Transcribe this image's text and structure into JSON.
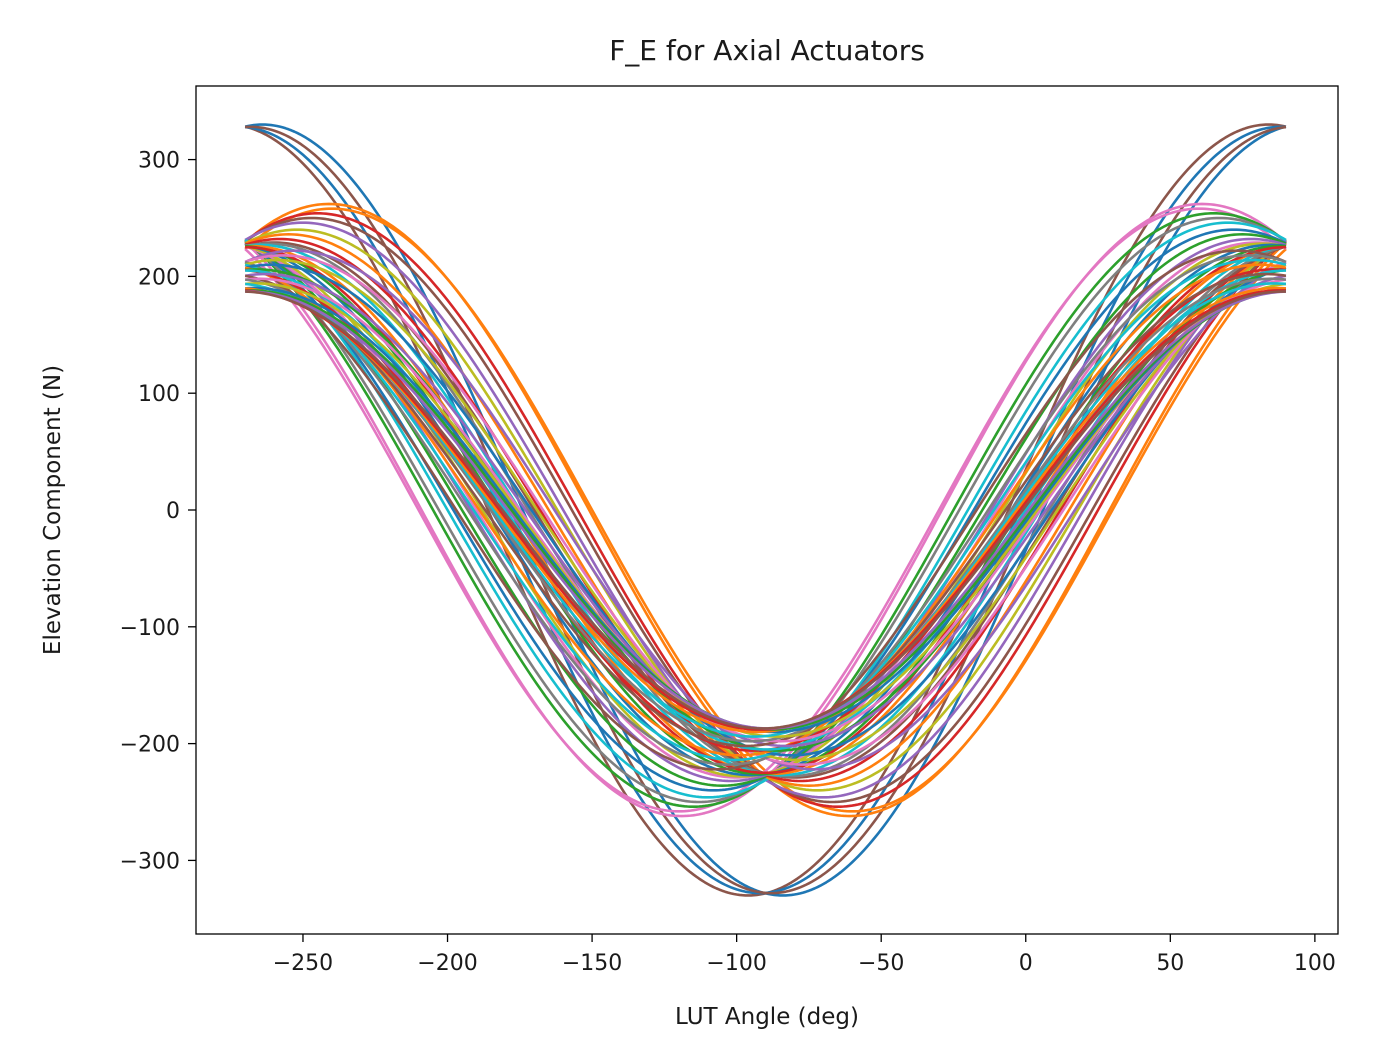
{
  "chart_data": {
    "type": "line",
    "title": "F_E for Axial Actuators",
    "xlabel": "LUT Angle (deg)",
    "ylabel": "Elevation Component (N)",
    "xlim": [
      -287,
      108
    ],
    "ylim": [
      -363,
      363
    ],
    "x_range": [
      -270,
      90
    ],
    "x_ticks": [
      -250,
      -200,
      -150,
      -100,
      -50,
      0,
      50,
      100
    ],
    "x_tick_labels": [
      "−250",
      "−200",
      "−150",
      "−100",
      "−50",
      "0",
      "50",
      "100"
    ],
    "y_ticks": [
      -300,
      -200,
      -100,
      0,
      100,
      200,
      300
    ],
    "y_tick_labels": [
      "−300",
      "−200",
      "−100",
      "0",
      "100",
      "200",
      "300"
    ],
    "grid": false,
    "legend": "none",
    "curve_model": "y = amplitude * cos(x - min_angle)",
    "series": [
      {
        "amplitude": 330,
        "min_angle": -84,
        "color": "#1f77b4"
      },
      {
        "amplitude": 330,
        "min_angle": -96,
        "color": "#8c564b"
      },
      {
        "amplitude": 328,
        "min_angle": -92,
        "color": "#1f77b4"
      },
      {
        "amplitude": 328,
        "min_angle": -88,
        "color": "#8c564b"
      },
      {
        "amplitude": 262,
        "min_angle": -61,
        "color": "#ff7f0e"
      },
      {
        "amplitude": 262,
        "min_angle": -119,
        "color": "#e377c2"
      },
      {
        "amplitude": 258,
        "min_angle": -60,
        "color": "#ff7f0e"
      },
      {
        "amplitude": 258,
        "min_angle": -120,
        "color": "#e377c2"
      },
      {
        "amplitude": 254,
        "min_angle": -65,
        "color": "#d62728"
      },
      {
        "amplitude": 254,
        "min_angle": -115,
        "color": "#2ca02c"
      },
      {
        "amplitude": 250,
        "min_angle": -67,
        "color": "#8c564b"
      },
      {
        "amplitude": 250,
        "min_angle": -113,
        "color": "#7f7f7f"
      },
      {
        "amplitude": 246,
        "min_angle": -70,
        "color": "#9467bd"
      },
      {
        "amplitude": 246,
        "min_angle": -110,
        "color": "#17becf"
      },
      {
        "amplitude": 240,
        "min_angle": -72,
        "color": "#bcbd22"
      },
      {
        "amplitude": 240,
        "min_angle": -108,
        "color": "#1f77b4"
      },
      {
        "amplitude": 236,
        "min_angle": -75,
        "color": "#ff7f0e"
      },
      {
        "amplitude": 236,
        "min_angle": -105,
        "color": "#2ca02c"
      },
      {
        "amplitude": 232,
        "min_angle": -78,
        "color": "#d62728"
      },
      {
        "amplitude": 232,
        "min_angle": -102,
        "color": "#9467bd"
      },
      {
        "amplitude": 229,
        "min_angle": -80,
        "color": "#8c564b"
      },
      {
        "amplitude": 229,
        "min_angle": -100,
        "color": "#e377c2"
      },
      {
        "amplitude": 228,
        "min_angle": -82,
        "color": "#7f7f7f"
      },
      {
        "amplitude": 228,
        "min_angle": -98,
        "color": "#bcbd22"
      },
      {
        "amplitude": 227,
        "min_angle": -85,
        "color": "#17becf"
      },
      {
        "amplitude": 227,
        "min_angle": -95,
        "color": "#1f77b4"
      },
      {
        "amplitude": 226,
        "min_angle": -88,
        "color": "#ff7f0e"
      },
      {
        "amplitude": 226,
        "min_angle": -92,
        "color": "#2ca02c"
      },
      {
        "amplitude": 225,
        "min_angle": -90,
        "color": "#d62728"
      },
      {
        "amplitude": 222,
        "min_angle": -73,
        "color": "#9467bd"
      },
      {
        "amplitude": 222,
        "min_angle": -107,
        "color": "#8c564b"
      },
      {
        "amplitude": 218,
        "min_angle": -77,
        "color": "#e377c2"
      },
      {
        "amplitude": 218,
        "min_angle": -103,
        "color": "#7f7f7f"
      },
      {
        "amplitude": 214,
        "min_angle": -79,
        "color": "#bcbd22"
      },
      {
        "amplitude": 214,
        "min_angle": -101,
        "color": "#17becf"
      },
      {
        "amplitude": 210,
        "min_angle": -81,
        "color": "#1f77b4"
      },
      {
        "amplitude": 210,
        "min_angle": -99,
        "color": "#ff7f0e"
      },
      {
        "amplitude": 206,
        "min_angle": -86,
        "color": "#2ca02c"
      },
      {
        "amplitude": 206,
        "min_angle": -94,
        "color": "#d62728"
      },
      {
        "amplitude": 205,
        "min_angle": -90,
        "color": "#17becf"
      },
      {
        "amplitude": 202,
        "min_angle": -83,
        "color": "#9467bd"
      },
      {
        "amplitude": 202,
        "min_angle": -97,
        "color": "#8c564b"
      },
      {
        "amplitude": 198,
        "min_angle": -85,
        "color": "#e377c2"
      },
      {
        "amplitude": 198,
        "min_angle": -95,
        "color": "#7f7f7f"
      },
      {
        "amplitude": 194,
        "min_angle": -86,
        "color": "#bcbd22"
      },
      {
        "amplitude": 194,
        "min_angle": -94,
        "color": "#17becf"
      },
      {
        "amplitude": 190,
        "min_angle": -87,
        "color": "#1f77b4"
      },
      {
        "amplitude": 190,
        "min_angle": -93,
        "color": "#ff7f0e"
      },
      {
        "amplitude": 188,
        "min_angle": -88,
        "color": "#2ca02c"
      },
      {
        "amplitude": 188,
        "min_angle": -92,
        "color": "#d62728"
      },
      {
        "amplitude": 187,
        "min_angle": -89,
        "color": "#9467bd"
      },
      {
        "amplitude": 187,
        "min_angle": -91,
        "color": "#8c564b"
      }
    ]
  }
}
